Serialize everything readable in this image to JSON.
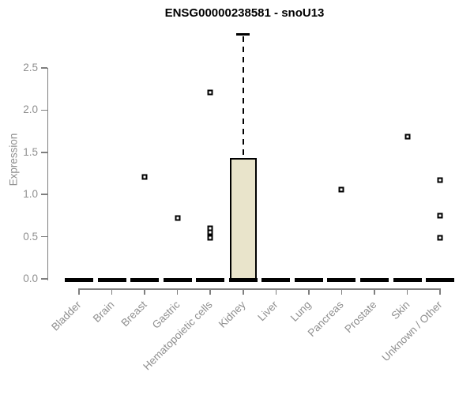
{
  "chart_data": {
    "type": "boxplot",
    "title": "ENSG00000238581 - snoU13",
    "ylabel": "Expression",
    "xlabel": "",
    "ylim": [
      0,
      2.9
    ],
    "yticks": [
      "0.0",
      "0.5",
      "1.0",
      "1.5",
      "2.0",
      "2.5"
    ],
    "grid": false,
    "legend": false,
    "categories": [
      "Bladder",
      "Brain",
      "Breast",
      "Gastric",
      "Hematopoietic cells",
      "Kidney",
      "Liver",
      "Lung",
      "Pancreas",
      "Prostate",
      "Skin",
      "Unknown / Other"
    ],
    "series": [
      {
        "category": "Bladder",
        "q1": 0,
        "median": 0,
        "q3": 0,
        "whisker_low": 0,
        "whisker_high": 0,
        "outliers": []
      },
      {
        "category": "Brain",
        "q1": 0,
        "median": 0,
        "q3": 0,
        "whisker_low": 0,
        "whisker_high": 0,
        "outliers": []
      },
      {
        "category": "Breast",
        "q1": 0,
        "median": 0,
        "q3": 0,
        "whisker_low": 0,
        "whisker_high": 0,
        "outliers": [
          1.21
        ]
      },
      {
        "category": "Gastric",
        "q1": 0,
        "median": 0,
        "q3": 0,
        "whisker_low": 0,
        "whisker_high": 0,
        "outliers": [
          0.72
        ]
      },
      {
        "category": "Hematopoietic cells",
        "q1": 0,
        "median": 0,
        "q3": 0,
        "whisker_low": 0,
        "whisker_high": 0,
        "outliers": [
          2.21,
          0.6,
          0.55,
          0.49
        ]
      },
      {
        "category": "Kidney",
        "q1": 0,
        "median": 0,
        "q3": 1.43,
        "whisker_low": 0,
        "whisker_high": 2.9,
        "outliers": []
      },
      {
        "category": "Liver",
        "q1": 0,
        "median": 0,
        "q3": 0,
        "whisker_low": 0,
        "whisker_high": 0,
        "outliers": []
      },
      {
        "category": "Lung",
        "q1": 0,
        "median": 0,
        "q3": 0,
        "whisker_low": 0,
        "whisker_high": 0,
        "outliers": []
      },
      {
        "category": "Pancreas",
        "q1": 0,
        "median": 0,
        "q3": 0,
        "whisker_low": 0,
        "whisker_high": 0,
        "outliers": [
          1.06
        ]
      },
      {
        "category": "Prostate",
        "q1": 0,
        "median": 0,
        "q3": 0,
        "whisker_low": 0,
        "whisker_high": 0,
        "outliers": []
      },
      {
        "category": "Skin",
        "q1": 0,
        "median": 0,
        "q3": 0,
        "whisker_low": 0,
        "whisker_high": 0,
        "outliers": [
          1.69
        ]
      },
      {
        "category": "Unknown / Other",
        "q1": 0,
        "median": 0,
        "q3": 0,
        "whisker_low": 0,
        "whisker_high": 0,
        "outliers": [
          1.17,
          0.75,
          0.49
        ]
      }
    ],
    "colors": {
      "box_fill": "#E9E4CB",
      "box_border": "#000000",
      "median": "#000000",
      "outlier": "#000000",
      "axis": "#7F7F7F",
      "tick_label": "#8F8F8F",
      "title": "#000000",
      "background": "#FFFFFF"
    }
  }
}
